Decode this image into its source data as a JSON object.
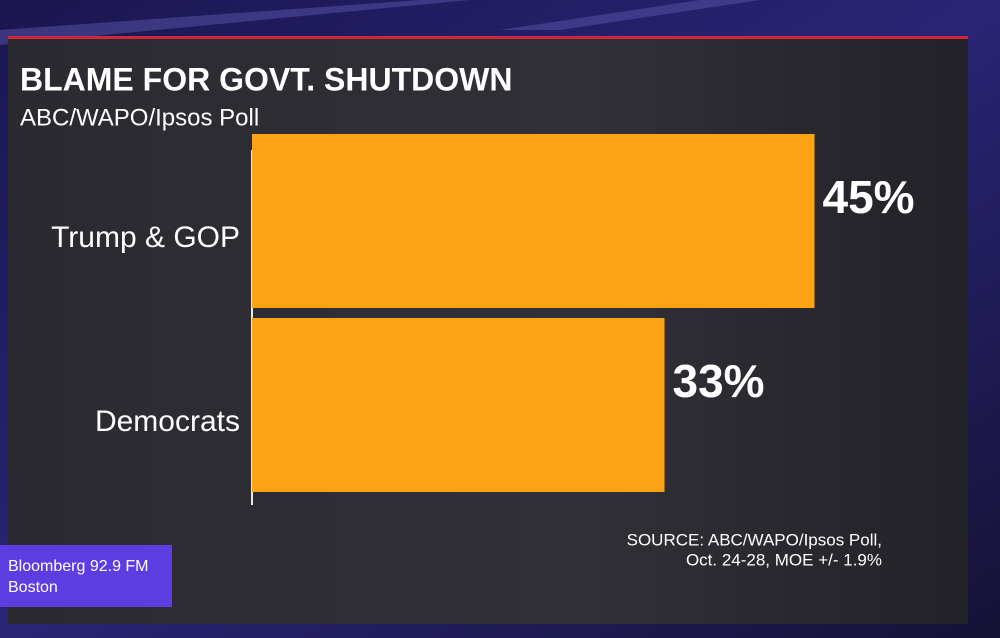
{
  "chart_data": {
    "type": "hbar",
    "title": "BLAME FOR GOVT. SHUTDOWN",
    "subtitle": "ABC/WAPO/Ipsos Poll",
    "categories": [
      "Trump & GOP",
      "Democrats"
    ],
    "values": [
      45,
      33
    ],
    "value_labels": [
      "45%",
      "33%"
    ],
    "color": "#fba313",
    "source": [
      "SOURCE: ABC/WAPO/Ipsos Poll,",
      "Oct. 24-28, MOE +/- 1.9%"
    ],
    "brand": [
      "Bloomberg 92.9 FM",
      "Boston"
    ]
  }
}
